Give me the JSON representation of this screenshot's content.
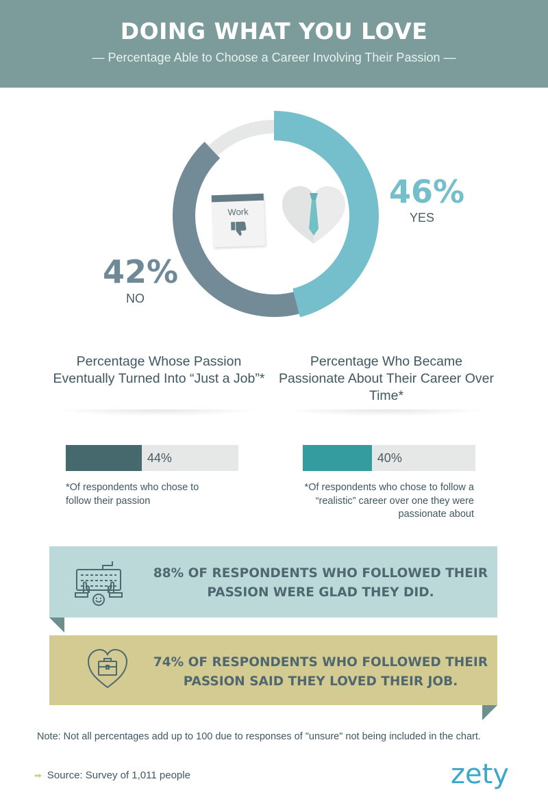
{
  "header": {
    "title": "DOING WHAT YOU LOVE",
    "subtitle": "— Percentage Able to Choose a Career Involving Their Passion —"
  },
  "chart_data": [
    {
      "type": "pie",
      "categories": [
        "YES",
        "NO",
        "unsure"
      ],
      "values": [
        46,
        42,
        12
      ],
      "labels": [
        "46%",
        "42%"
      ],
      "colors": {
        "yes": "#74bfcb",
        "no": "#728b96",
        "unsure": "#e6e7e7"
      }
    },
    {
      "type": "bar",
      "title": "Percentage Whose Passion Eventually Turned Into “Just a Job”*",
      "values": [
        44
      ],
      "label": "44%",
      "ylim": [
        0,
        100
      ],
      "note": "*Of respondents who chose to follow their passion",
      "color": "#46696e"
    },
    {
      "type": "bar",
      "title": "Percentage Who Became Passionate About Their Career Over Time*",
      "values": [
        40
      ],
      "label": "40%",
      "ylim": [
        0,
        100
      ],
      "note": "*Of respondents who chose to follow a “realistic” career over one they were passionate about",
      "color": "#349c9e"
    }
  ],
  "donut": {
    "yes_pct": "46%",
    "yes_label": "YES",
    "no_pct": "42%",
    "no_label": "NO",
    "calendar_text": "Work",
    "icons": [
      "calendar-thumbs-down-icon",
      "heart-tie-icon"
    ]
  },
  "left_col": {
    "title": "Percentage Whose Passion Eventually Turned Into “Just a Job”*",
    "value": 44,
    "value_label": "44%",
    "note": "*Of respondents who chose to follow their passion"
  },
  "right_col": {
    "title": "Percentage Who Became Passionate About Their Career Over Time*",
    "value": 40,
    "value_label": "40%",
    "note": "*Of respondents who chose to follow a “realistic” career over one they were passionate about"
  },
  "banners": [
    {
      "text": "88% OF RESPONDENTS WHO FOLLOWED THEIR PASSION WERE GLAD THEY DID.",
      "icon": "keyboard-smile-icon",
      "color": "#bcd9d9"
    },
    {
      "text": "74% OF RESPONDENTS WHO FOLLOWED THEIR PASSION SAID THEY LOVED THEIR JOB.",
      "icon": "heart-briefcase-icon",
      "color": "#d4cb93"
    }
  ],
  "footer": {
    "note": "Note: Not all percentages add up to 100 due to responses of \"unsure\" not being included in the chart.",
    "source": "Source: Survey of 1,011 people",
    "logo": "zety"
  }
}
